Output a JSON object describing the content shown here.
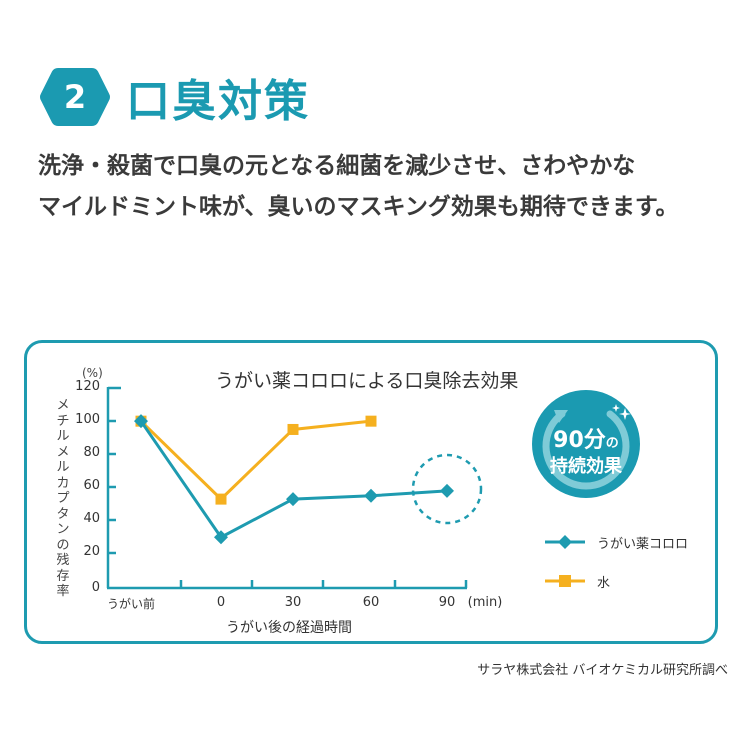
{
  "header": {
    "number": "2",
    "title": "口臭対策",
    "accent_color": "#1b9ab1"
  },
  "description": {
    "line1": "洗浄・殺菌で口臭の元となる細菌を減少させ、さわやかな",
    "line2": "マイルドミント味が、臭いのマスキング効果も期待できます。"
  },
  "badge": {
    "line1_main": "90分",
    "line1_suffix": "の",
    "line2": "持続効果"
  },
  "source_note": "サラヤ株式会社 バイオケミカル研究所調べ",
  "chart_data": {
    "type": "line",
    "title": "うがい薬コロロによる口臭除去効果",
    "xlabel": "うがい後の経過時間",
    "ylabel": "メチルメルカプタンの残存率",
    "y_unit": "(%)",
    "x_unit": "(min)",
    "categories": [
      "うがい前",
      "0",
      "30",
      "60",
      "90"
    ],
    "y_ticks": [
      "0",
      "20",
      "40",
      "60",
      "80",
      "100",
      "120"
    ],
    "ylim": [
      0,
      120
    ],
    "grid": false,
    "legend_position": "right",
    "series": [
      {
        "name": "うがい薬コロロ",
        "marker": "diamond",
        "color": "#1e9bb0",
        "values": [
          100,
          30,
          53,
          55,
          58
        ]
      },
      {
        "name": "水",
        "marker": "square",
        "color": "#f5b01f",
        "values": [
          100,
          53,
          95,
          100,
          null
        ]
      }
    ],
    "annotations": [
      {
        "type": "dashed-circle",
        "target": "うがい薬コロロ @ 90"
      }
    ]
  }
}
